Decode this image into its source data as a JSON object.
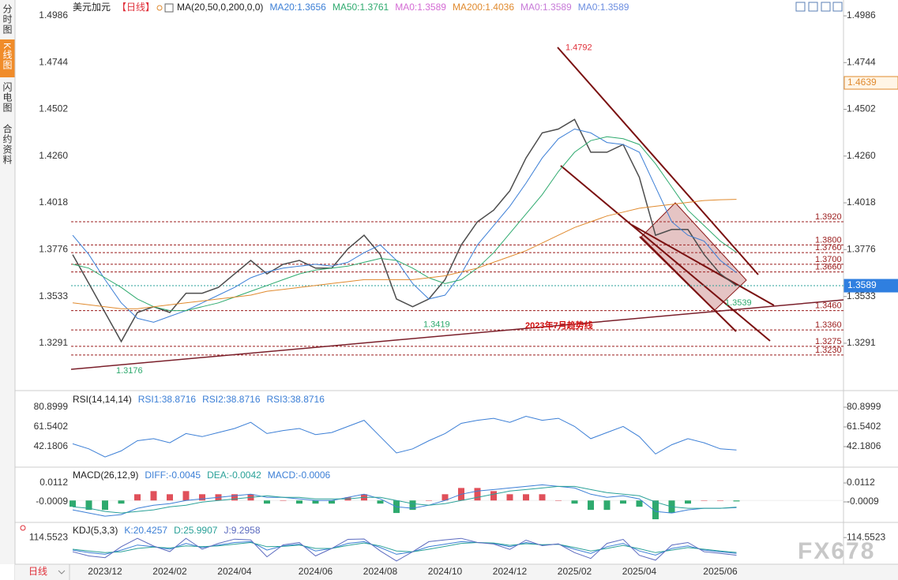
{
  "sidebar": [
    "分时图",
    "K线图",
    "闪电图",
    "合约资料"
  ],
  "period_label": "日线",
  "watermark": "FX678",
  "chart_data": [
    {
      "type": "line",
      "title": "美元加元",
      "period": "【日线】",
      "indicator": "MA(20,50,0,200,0,0)",
      "categories": [
        null,
        null,
        "2023/12",
        null,
        null,
        null,
        "2024/02",
        null,
        null,
        null,
        "2024/04",
        null,
        null,
        null,
        null,
        "2024/06",
        null,
        null,
        null,
        "2024/08",
        null,
        null,
        null,
        "2024/10",
        null,
        null,
        null,
        "2024/12",
        null,
        null,
        null,
        "2025/02",
        null,
        null,
        null,
        "2025/04",
        null,
        null,
        null,
        null,
        "2025/06",
        null
      ],
      "series": [
        {
          "color": "#4d4d4d",
          "values": [
            1.375,
            1.36,
            1.345,
            1.33,
            1.345,
            1.348,
            1.345,
            1.355,
            1.355,
            1.358,
            1.365,
            1.372,
            1.365,
            1.37,
            1.372,
            1.368,
            1.368,
            1.378,
            1.385,
            1.375,
            1.352,
            1.348,
            1.352,
            1.362,
            1.38,
            1.392,
            1.398,
            1.408,
            1.425,
            1.438,
            1.44,
            1.445,
            1.428,
            1.428,
            1.432,
            1.415,
            1.385,
            1.388,
            1.388,
            1.375,
            1.365,
            1.3589
          ]
        },
        {
          "name": "MA20:1.3656",
          "color": "#3c7fd6",
          "values": [
            1.385,
            1.375,
            1.362,
            1.35,
            1.342,
            1.34,
            1.343,
            1.346,
            1.35,
            1.354,
            1.358,
            1.363,
            1.366,
            1.368,
            1.369,
            1.37,
            1.369,
            1.371,
            1.376,
            1.38,
            1.372,
            1.36,
            1.352,
            1.354,
            1.365,
            1.38,
            1.39,
            1.4,
            1.412,
            1.425,
            1.435,
            1.44,
            1.438,
            1.433,
            1.432,
            1.428,
            1.41,
            1.392,
            1.385,
            1.382,
            1.372,
            1.3656
          ]
        },
        {
          "name": "MA50:1.3761",
          "color": "#2eaa6e",
          "values": [
            1.37,
            1.368,
            1.363,
            1.358,
            1.352,
            1.348,
            1.346,
            1.346,
            1.348,
            1.35,
            1.353,
            1.356,
            1.359,
            1.362,
            1.365,
            1.367,
            1.368,
            1.369,
            1.371,
            1.373,
            1.372,
            1.368,
            1.363,
            1.36,
            1.362,
            1.368,
            1.376,
            1.386,
            1.396,
            1.406,
            1.418,
            1.428,
            1.434,
            1.436,
            1.435,
            1.432,
            1.422,
            1.41,
            1.398,
            1.39,
            1.382,
            1.3761
          ]
        },
        {
          "name": "MA0:1.3589",
          "color": "#d46bd4"
        },
        {
          "name": "MA200:1.4036",
          "color": "#e08a2e",
          "values": [
            1.35,
            1.349,
            1.348,
            1.347,
            1.347,
            1.348,
            1.349,
            1.35,
            1.351,
            1.352,
            1.353,
            1.354,
            1.356,
            1.357,
            1.358,
            1.359,
            1.36,
            1.361,
            1.362,
            1.362,
            1.362,
            1.362,
            1.363,
            1.364,
            1.366,
            1.368,
            1.371,
            1.374,
            1.377,
            1.381,
            1.385,
            1.389,
            1.392,
            1.395,
            1.397,
            1.399,
            1.4,
            1.401,
            1.402,
            1.403,
            1.4034,
            1.4036
          ]
        },
        {
          "name": "MA0:1.3589",
          "color": "#c77ad8"
        },
        {
          "name": "MA0:1.3589",
          "color": "#6c8ee0"
        }
      ],
      "ylim": [
        1.3058,
        1.5019
      ],
      "yticks": [
        1.4986,
        1.4744,
        1.4502,
        {
          "value": 1.426,
          "label": "1.4260"
        },
        1.4018,
        1.3776,
        1.3533,
        1.3291
      ],
      "levels": [
        {
          "value": 1.392,
          "label": "1.3920"
        },
        {
          "value": 1.38,
          "label": "1.3800"
        },
        {
          "value": 1.376,
          "label": "1.3760"
        },
        {
          "value": 1.37,
          "label": "1.3700"
        },
        {
          "value": 1.366,
          "label": "1.3660"
        },
        {
          "value": 1.346,
          "label": "1.3460"
        },
        {
          "value": 1.336,
          "label": "1.3360"
        },
        1.3275,
        {
          "value": 1.323,
          "label": "1.3230"
        }
      ],
      "price_tags": [
        {
          "value": 1.4639,
          "color": "#e08a2e"
        },
        {
          "value": 1.3589,
          "color": "#2f7fe0"
        }
      ],
      "annotations": [
        {
          "value": 1.4792,
          "color": "#e0303a"
        },
        {
          "value": 1.3176,
          "color": "#2eaa6e"
        },
        {
          "value": 1.3419,
          "color": "#2eaa6e"
        },
        {
          "value": 1.3539,
          "color": "#2eaa6e"
        }
      ],
      "trend_label": "2023年7月趋势线"
    },
    {
      "type": "line",
      "title": "RSI(14,14,14)",
      "series": [
        {
          "name": "RSI1:38.8716",
          "color": "#3c7fd6",
          "values": [
            45,
            40,
            32,
            38,
            48,
            50,
            46,
            55,
            52,
            56,
            60,
            66,
            55,
            58,
            60,
            54,
            56,
            62,
            68,
            52,
            36,
            40,
            48,
            55,
            65,
            68,
            70,
            66,
            72,
            68,
            70,
            62,
            50,
            56,
            62,
            52,
            35,
            44,
            50,
            46,
            40,
            38.8716
          ]
        },
        {
          "name": "RSI2:38.8716",
          "color": "#3c7fd6"
        },
        {
          "name": "RSI3:38.8716",
          "color": "#3c7fd6"
        }
      ],
      "ylim": [
        23.6,
        95.6
      ],
      "yticks": [
        80.8999,
        61.5402,
        42.1806
      ]
    },
    {
      "type": "macd",
      "title": "MACD(26,12,9)",
      "series": [
        {
          "name": "DIFF:-0.0045",
          "color": "#3c7fd6",
          "values": [
            -0.006,
            -0.008,
            -0.01,
            -0.009,
            -0.005,
            -0.003,
            -0.002,
            0,
            0.001,
            0.002,
            0.003,
            0.004,
            0.002,
            0.002,
            0.001,
            0,
            0,
            0.002,
            0.004,
            0.001,
            -0.004,
            -0.005,
            -0.003,
            0,
            0.004,
            0.006,
            0.007,
            0.008,
            0.009,
            0.01,
            0.009,
            0.008,
            0.004,
            0.002,
            0.003,
            0.001,
            -0.007,
            -0.008,
            -0.006,
            -0.005,
            -0.005,
            -0.0045
          ]
        },
        {
          "name": "DEA:-0.0042",
          "color": "#2aa198",
          "values": [
            -0.004,
            -0.005,
            -0.007,
            -0.008,
            -0.007,
            -0.006,
            -0.004,
            -0.003,
            -0.001,
            0,
            0.001,
            0.002,
            0.003,
            0.002,
            0.002,
            0.001,
            0.001,
            0.001,
            0.002,
            0.002,
            0,
            -0.002,
            -0.003,
            -0.002,
            0,
            0.002,
            0.004,
            0.006,
            0.007,
            0.008,
            0.009,
            0.009,
            0.007,
            0.005,
            0.004,
            0.003,
            -0.001,
            -0.004,
            -0.005,
            -0.005,
            -0.005,
            -0.0042
          ]
        },
        {
          "name": "MACD:-0.0006",
          "color": "#3c7fd6",
          "up_color": "#e0505a",
          "down_color": "#2eaa6e",
          "values": [
            -0.004,
            -0.006,
            -0.006,
            -0.002,
            0.004,
            0.006,
            0.004,
            0.006,
            0.004,
            0.004,
            0.004,
            0.004,
            -0.002,
            0,
            -0.002,
            -0.002,
            -0.002,
            0.002,
            0.004,
            -0.002,
            -0.008,
            -0.006,
            0,
            0.004,
            0.008,
            0.008,
            0.006,
            0.004,
            0.004,
            0.004,
            0,
            -0.002,
            -0.006,
            -0.006,
            -0.002,
            -0.004,
            -0.012,
            -0.008,
            -0.002,
            0,
            0,
            -0.0006
          ]
        }
      ],
      "ylim": [
        -0.013,
        0.0208
      ],
      "yticks": [
        0.0112,
        -0.0009
      ]
    },
    {
      "type": "line",
      "title": "KDJ(5,3,3)",
      "series": [
        {
          "name": "K:20.4257",
          "color": "#3c7fd6",
          "values": [
            40,
            25,
            15,
            40,
            70,
            60,
            45,
            80,
            55,
            70,
            85,
            90,
            40,
            65,
            75,
            35,
            50,
            80,
            90,
            55,
            15,
            30,
            60,
            75,
            90,
            85,
            80,
            60,
            85,
            70,
            75,
            45,
            20,
            60,
            80,
            35,
            10,
            50,
            65,
            40,
            30,
            20.4257
          ]
        },
        {
          "name": "D:25.9907",
          "color": "#2aa198",
          "values": [
            45,
            35,
            25,
            30,
            50,
            58,
            52,
            65,
            60,
            65,
            75,
            85,
            60,
            62,
            70,
            50,
            50,
            68,
            82,
            65,
            35,
            30,
            45,
            62,
            80,
            85,
            82,
            68,
            78,
            72,
            74,
            55,
            35,
            50,
            68,
            48,
            25,
            40,
            55,
            45,
            35,
            25.9907
          ]
        },
        {
          "name": "J:9.2958",
          "color": "#5b6abf",
          "values": [
            30,
            5,
            -5,
            60,
            110,
            64,
            31,
            110,
            45,
            80,
            105,
            100,
            0,
            71,
            85,
            5,
            50,
            104,
            106,
            35,
            -25,
            30,
            90,
            101,
            110,
            85,
            76,
            44,
            99,
            66,
            77,
            25,
            -10,
            80,
            104,
            9,
            -20,
            70,
            85,
            30,
            20,
            9.2958
          ]
        }
      ],
      "ylim": [
        -30,
        200
      ],
      "yticks": [
        114.5523
      ]
    }
  ]
}
